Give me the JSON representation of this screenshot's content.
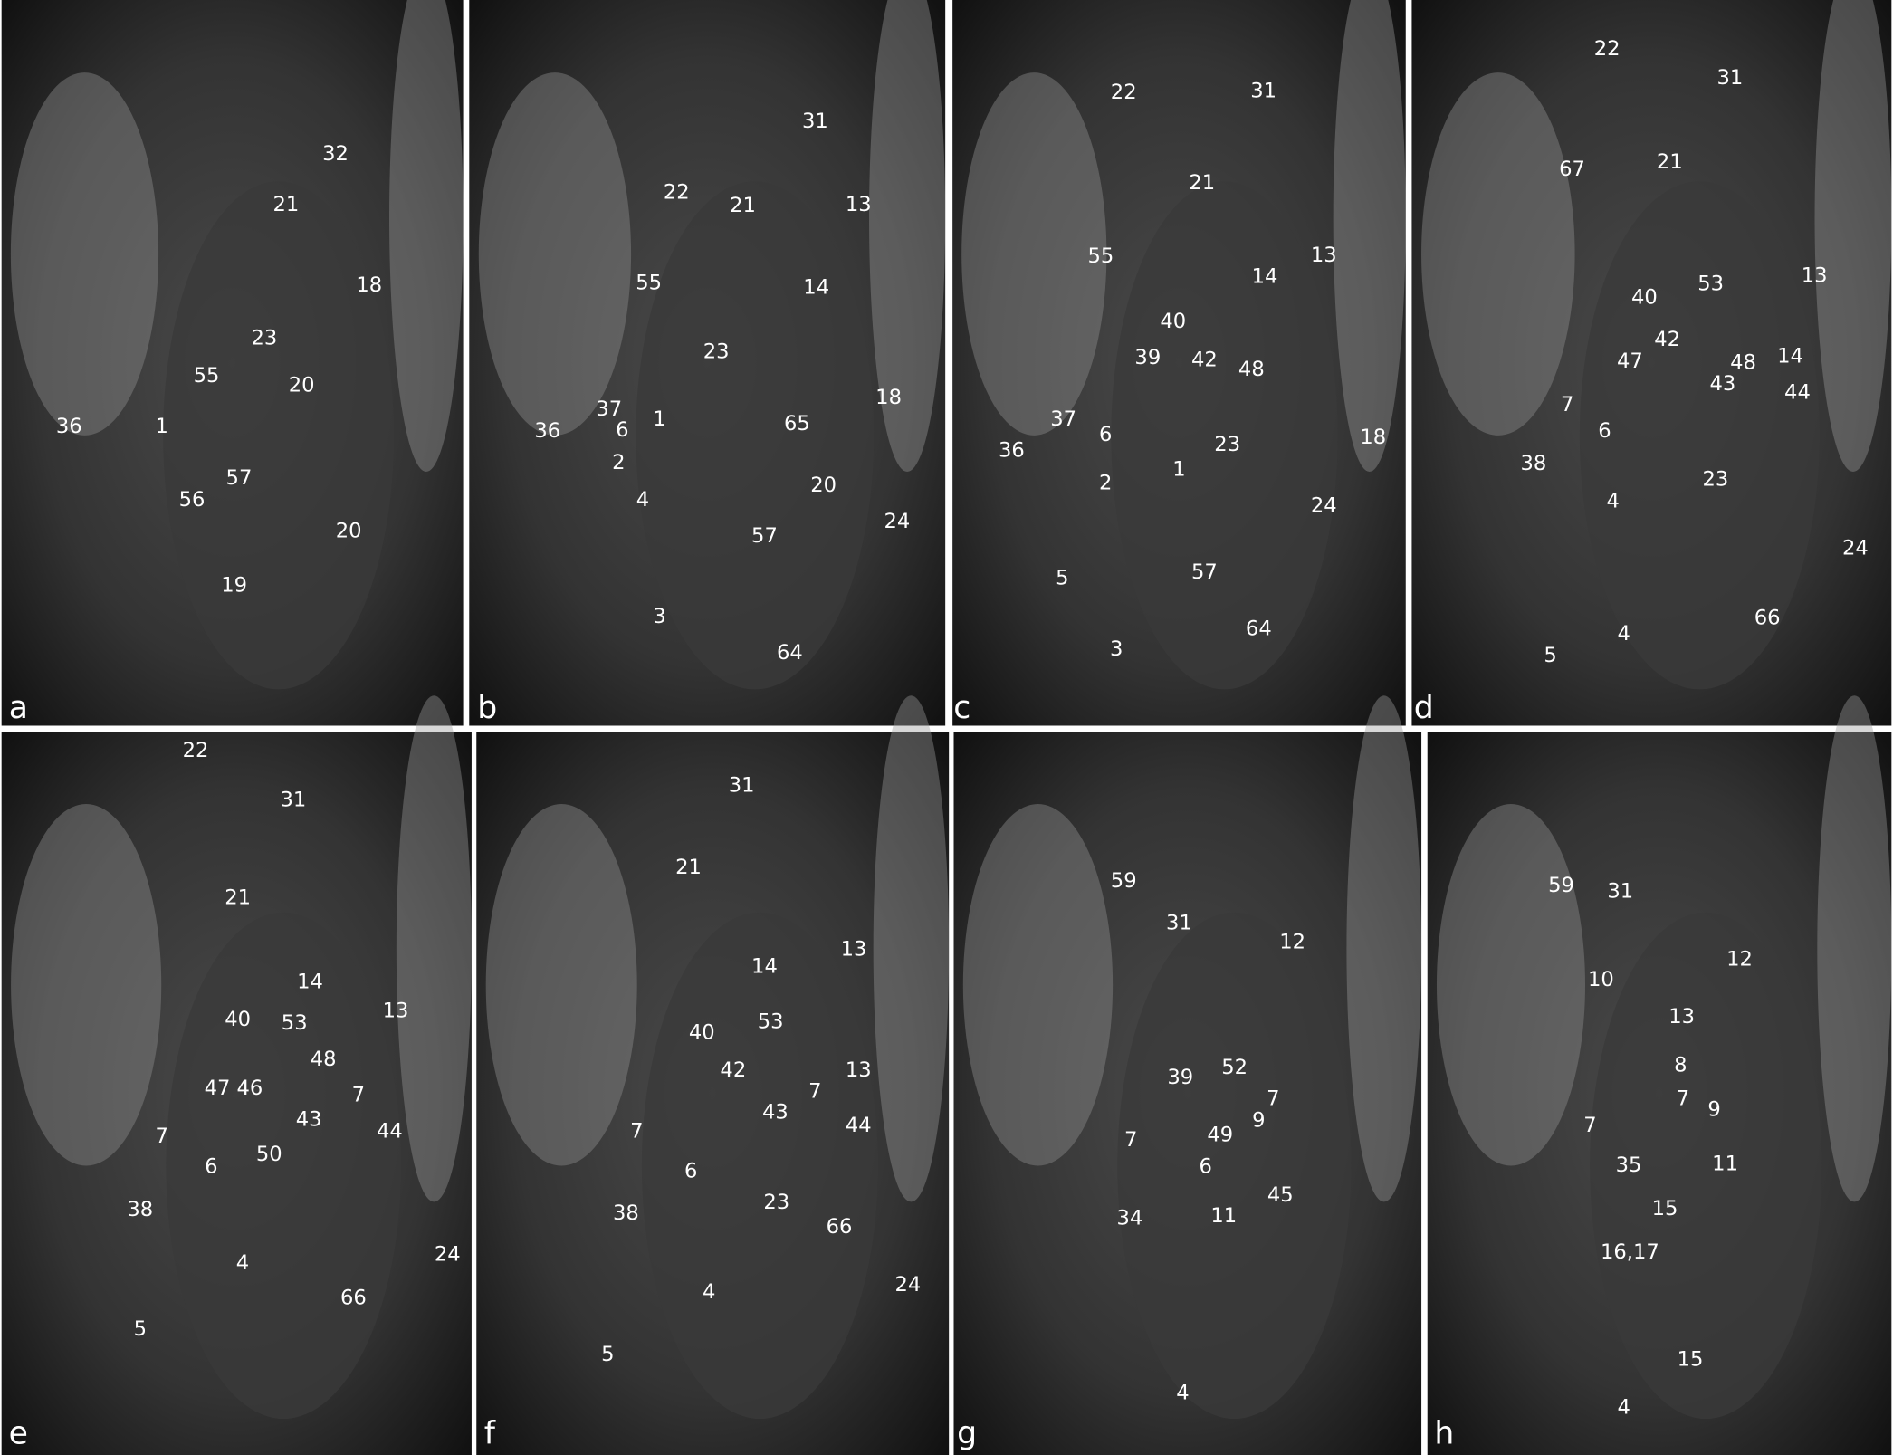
{
  "panels": [
    {
      "letter": "a",
      "labels": [
        "32",
        "21",
        "18",
        "23",
        "55",
        "20",
        "36",
        "1",
        "57",
        "56",
        "20",
        "19"
      ]
    },
    {
      "letter": "b",
      "labels": [
        "31",
        "22",
        "21",
        "13",
        "14",
        "55",
        "23",
        "18",
        "37",
        "1",
        "65",
        "36",
        "6",
        "2",
        "4",
        "20",
        "24",
        "57",
        "3",
        "64"
      ]
    },
    {
      "letter": "c",
      "labels": [
        "31",
        "22",
        "21",
        "13",
        "55",
        "14",
        "40",
        "39",
        "42",
        "48",
        "37",
        "6",
        "18",
        "36",
        "23",
        "1",
        "2",
        "24",
        "57",
        "5",
        "64",
        "3"
      ]
    },
    {
      "letter": "d",
      "labels": [
        "22",
        "31",
        "21",
        "67",
        "13",
        "53",
        "40",
        "42",
        "47",
        "48",
        "14",
        "43",
        "44",
        "7",
        "6",
        "38",
        "23",
        "4",
        "24",
        "66",
        "4",
        "5"
      ]
    },
    {
      "letter": "e",
      "labels": [
        "22",
        "31",
        "21",
        "14",
        "13",
        "40",
        "53",
        "48",
        "47",
        "46",
        "7",
        "43",
        "44",
        "7",
        "50",
        "6",
        "38",
        "4",
        "24",
        "66",
        "5"
      ]
    },
    {
      "letter": "f",
      "labels": [
        "31",
        "21",
        "13",
        "14",
        "40",
        "53",
        "42",
        "13",
        "7",
        "43",
        "44",
        "7",
        "6",
        "23",
        "38",
        "66",
        "4",
        "24",
        "5"
      ]
    },
    {
      "letter": "g",
      "labels": [
        "59",
        "31",
        "12",
        "52",
        "39",
        "7",
        "9",
        "49",
        "7",
        "6",
        "11",
        "45",
        "34",
        "4"
      ]
    },
    {
      "letter": "h",
      "labels": [
        "59",
        "31",
        "12",
        "10",
        "13",
        "8",
        "7",
        "9",
        "7",
        "35",
        "11",
        "15",
        "16,17",
        "15",
        "4"
      ]
    }
  ]
}
